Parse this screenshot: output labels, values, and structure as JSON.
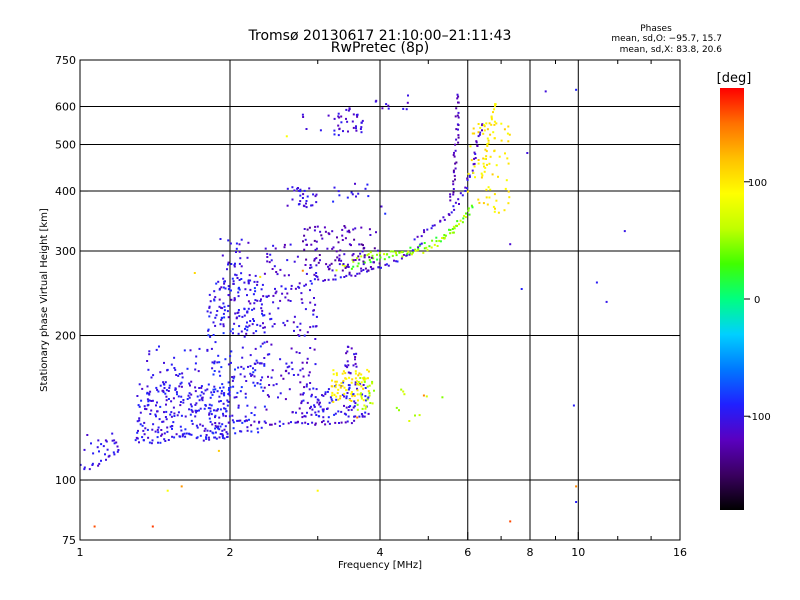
{
  "chart_data": {
    "type": "scatter",
    "title": "Tromsø 20130617 21:10:00–21:11:43",
    "subtitle": "RwPretec (8p)",
    "xlabel": "Frequency [MHz]",
    "ylabel": "Stationary phase Virtual Height [km]",
    "x_scale": "log",
    "y_scale": "log",
    "xlim": [
      1,
      16
    ],
    "ylim": [
      75,
      750
    ],
    "x_ticks": [
      1,
      2,
      4,
      6,
      8,
      10,
      16
    ],
    "x_ticklabels": [
      "1",
      "2",
      "4",
      "6",
      "8",
      "10",
      "16"
    ],
    "y_ticks": [
      75,
      100,
      200,
      300,
      400,
      500,
      600,
      750
    ],
    "y_ticklabels": [
      "75",
      "100",
      "200",
      "300",
      "400",
      "500",
      "600",
      "750"
    ],
    "grid": true,
    "phases": {
      "title": "Phases",
      "line_o": "mean, sd,O: −95.7, 15.7",
      "line_x": "mean, sd,X:  83.8, 20.6"
    },
    "colorbar": {
      "label": "[deg]",
      "range": [
        -180,
        180
      ],
      "ticks": [
        100,
        0,
        -100
      ],
      "ticklabels": [
        "100",
        "0",
        "-100"
      ],
      "colors": [
        "#000000",
        "#3a0060",
        "#5a00c0",
        "#2020ff",
        "#0078ff",
        "#00d0ff",
        "#00ff80",
        "#40ff00",
        "#c0ff00",
        "#ffff00",
        "#ffc000",
        "#ff7000",
        "#ff0000"
      ]
    },
    "series": [
      {
        "kind": "trace",
        "phase": -105,
        "x": [
          1.0,
          1.04,
          1.08,
          1.12,
          1.15,
          1.2
        ],
        "y": [
          107,
          106,
          108,
          110,
          112,
          116
        ]
      },
      {
        "kind": "cloud",
        "phase": -100,
        "x": [
          1.02,
          1.2
        ],
        "y": [
          112,
          125
        ],
        "n": 20
      },
      {
        "kind": "trace",
        "phase": -100,
        "x": [
          1.3,
          1.45,
          1.6,
          1.8,
          1.95,
          2.0
        ],
        "y": [
          121,
          120,
          124,
          122,
          122,
          126
        ]
      },
      {
        "kind": "cloud",
        "phase": -100,
        "x": [
          1.3,
          2.0
        ],
        "y": [
          122,
          160
        ],
        "n": 220
      },
      {
        "kind": "cloud",
        "phase": -100,
        "x": [
          1.35,
          1.75
        ],
        "y": [
          138,
          190
        ],
        "n": 50
      },
      {
        "kind": "cloud",
        "phase": -95,
        "x": [
          1.8,
          2.35
        ],
        "y": [
          125,
          270
        ],
        "n": 220
      },
      {
        "kind": "cloud",
        "phase": -105,
        "x": [
          1.9,
          2.2
        ],
        "y": [
          200,
          320
        ],
        "n": 60
      },
      {
        "kind": "trace",
        "phase": -105,
        "x": [
          2.05,
          2.3,
          2.6,
          2.9,
          3.2,
          3.5,
          3.8,
          4.1,
          4.3,
          4.6,
          4.9
        ],
        "y": [
          220,
          238,
          250,
          258,
          263,
          268,
          272,
          278,
          285,
          298,
          318
        ]
      },
      {
        "kind": "trace",
        "phase": 30,
        "x": [
          3.5,
          3.9,
          4.3,
          4.7,
          5.1,
          5.4,
          5.7,
          6.0,
          6.2
        ],
        "y": [
          275,
          288,
          296,
          302,
          312,
          322,
          340,
          360,
          378
        ]
      },
      {
        "kind": "trace",
        "phase": 60,
        "x": [
          3.3,
          3.6,
          4.0,
          4.4,
          4.8,
          5.2,
          5.5,
          5.8,
          6.1
        ],
        "y": [
          275,
          290,
          298,
          295,
          298,
          310,
          325,
          345,
          365
        ]
      },
      {
        "kind": "trace",
        "phase": -110,
        "x": [
          4.7,
          5.0,
          5.3,
          5.6,
          5.9,
          6.1,
          6.2,
          6.3,
          6.5
        ],
        "y": [
          320,
          335,
          345,
          365,
          400,
          440,
          480,
          520,
          560
        ]
      },
      {
        "kind": "trace",
        "phase": -120,
        "x": [
          5.55,
          5.62,
          5.66,
          5.7,
          5.72,
          5.75
        ],
        "y": [
          380,
          430,
          470,
          520,
          580,
          650
        ]
      },
      {
        "kind": "trace",
        "phase": 100,
        "x": [
          6.4,
          6.5,
          6.6,
          6.7,
          6.8,
          6.9
        ],
        "y": [
          430,
          470,
          520,
          560,
          600,
          620
        ]
      },
      {
        "kind": "cloud",
        "phase": 100,
        "x": [
          6.0,
          7.3
        ],
        "y": [
          360,
          560
        ],
        "n": 70
      },
      {
        "kind": "cloud",
        "phase": -120,
        "x": [
          2.8,
          4.0
        ],
        "y": [
          270,
          340
        ],
        "n": 110
      },
      {
        "kind": "cloud",
        "phase": -110,
        "x": [
          2.3,
          3.0
        ],
        "y": [
          135,
          310
        ],
        "n": 150
      },
      {
        "kind": "trace",
        "phase": -110,
        "x": [
          2.0,
          2.4,
          2.8,
          3.2,
          3.6
        ],
        "y": [
          132,
          131,
          131,
          132,
          132
        ]
      },
      {
        "kind": "cloud",
        "phase": -100,
        "x": [
          2.8,
          3.8
        ],
        "y": [
          135,
          160
        ],
        "n": 100
      },
      {
        "kind": "cloud",
        "phase": 100,
        "x": [
          3.2,
          3.8
        ],
        "y": [
          145,
          170
        ],
        "n": 70
      },
      {
        "kind": "cloud",
        "phase": 60,
        "x": [
          3.6,
          3.9
        ],
        "y": [
          140,
          165
        ],
        "n": 25
      },
      {
        "kind": "cloud",
        "phase": -110,
        "x": [
          3.4,
          3.6
        ],
        "y": [
          165,
          190
        ],
        "n": 20
      },
      {
        "kind": "cloud",
        "phase": -105,
        "x": [
          2.6,
          3.0
        ],
        "y": [
          370,
          410
        ],
        "n": 30
      },
      {
        "kind": "cloud",
        "phase": -110,
        "x": [
          3.2,
          3.7
        ],
        "y": [
          530,
          600
        ],
        "n": 30
      },
      {
        "kind": "cloud",
        "phase": -105,
        "x": [
          2.8,
          3.4
        ],
        "y": [
          520,
          580
        ],
        "n": 10
      },
      {
        "kind": "cloud",
        "phase": -110,
        "x": [
          3.9,
          4.6
        ],
        "y": [
          590,
          650
        ],
        "n": 10
      },
      {
        "kind": "cloud",
        "phase": -100,
        "x": [
          3.2,
          4.1
        ],
        "y": [
          350,
          420
        ],
        "n": 15
      },
      {
        "kind": "cloud",
        "phase": 60,
        "x": [
          4.3,
          5.5
        ],
        "y": [
          130,
          160
        ],
        "n": 10
      },
      {
        "kind": "scatter",
        "phase": -105,
        "x": [
          8.6,
          9.9,
          10.9,
          11.4,
          12.4,
          7.9,
          7.7,
          9.8,
          9.9,
          7.3
        ],
        "y": [
          645,
          650,
          258,
          235,
          330,
          480,
          250,
          143,
          90,
          310
        ]
      },
      {
        "kind": "scatter",
        "phase": 150,
        "x": [
          1.07,
          1.4,
          1.6,
          2.8,
          7.3,
          9.9,
          4.9,
          3.6
        ],
        "y": [
          80,
          80,
          97,
          273,
          82,
          97,
          150,
          135
        ]
      },
      {
        "kind": "scatter",
        "phase": 100,
        "x": [
          1.5,
          1.9,
          2.3,
          1.7,
          3.0,
          2.6
        ],
        "y": [
          95,
          115,
          265,
          270,
          95,
          520
        ]
      }
    ]
  }
}
